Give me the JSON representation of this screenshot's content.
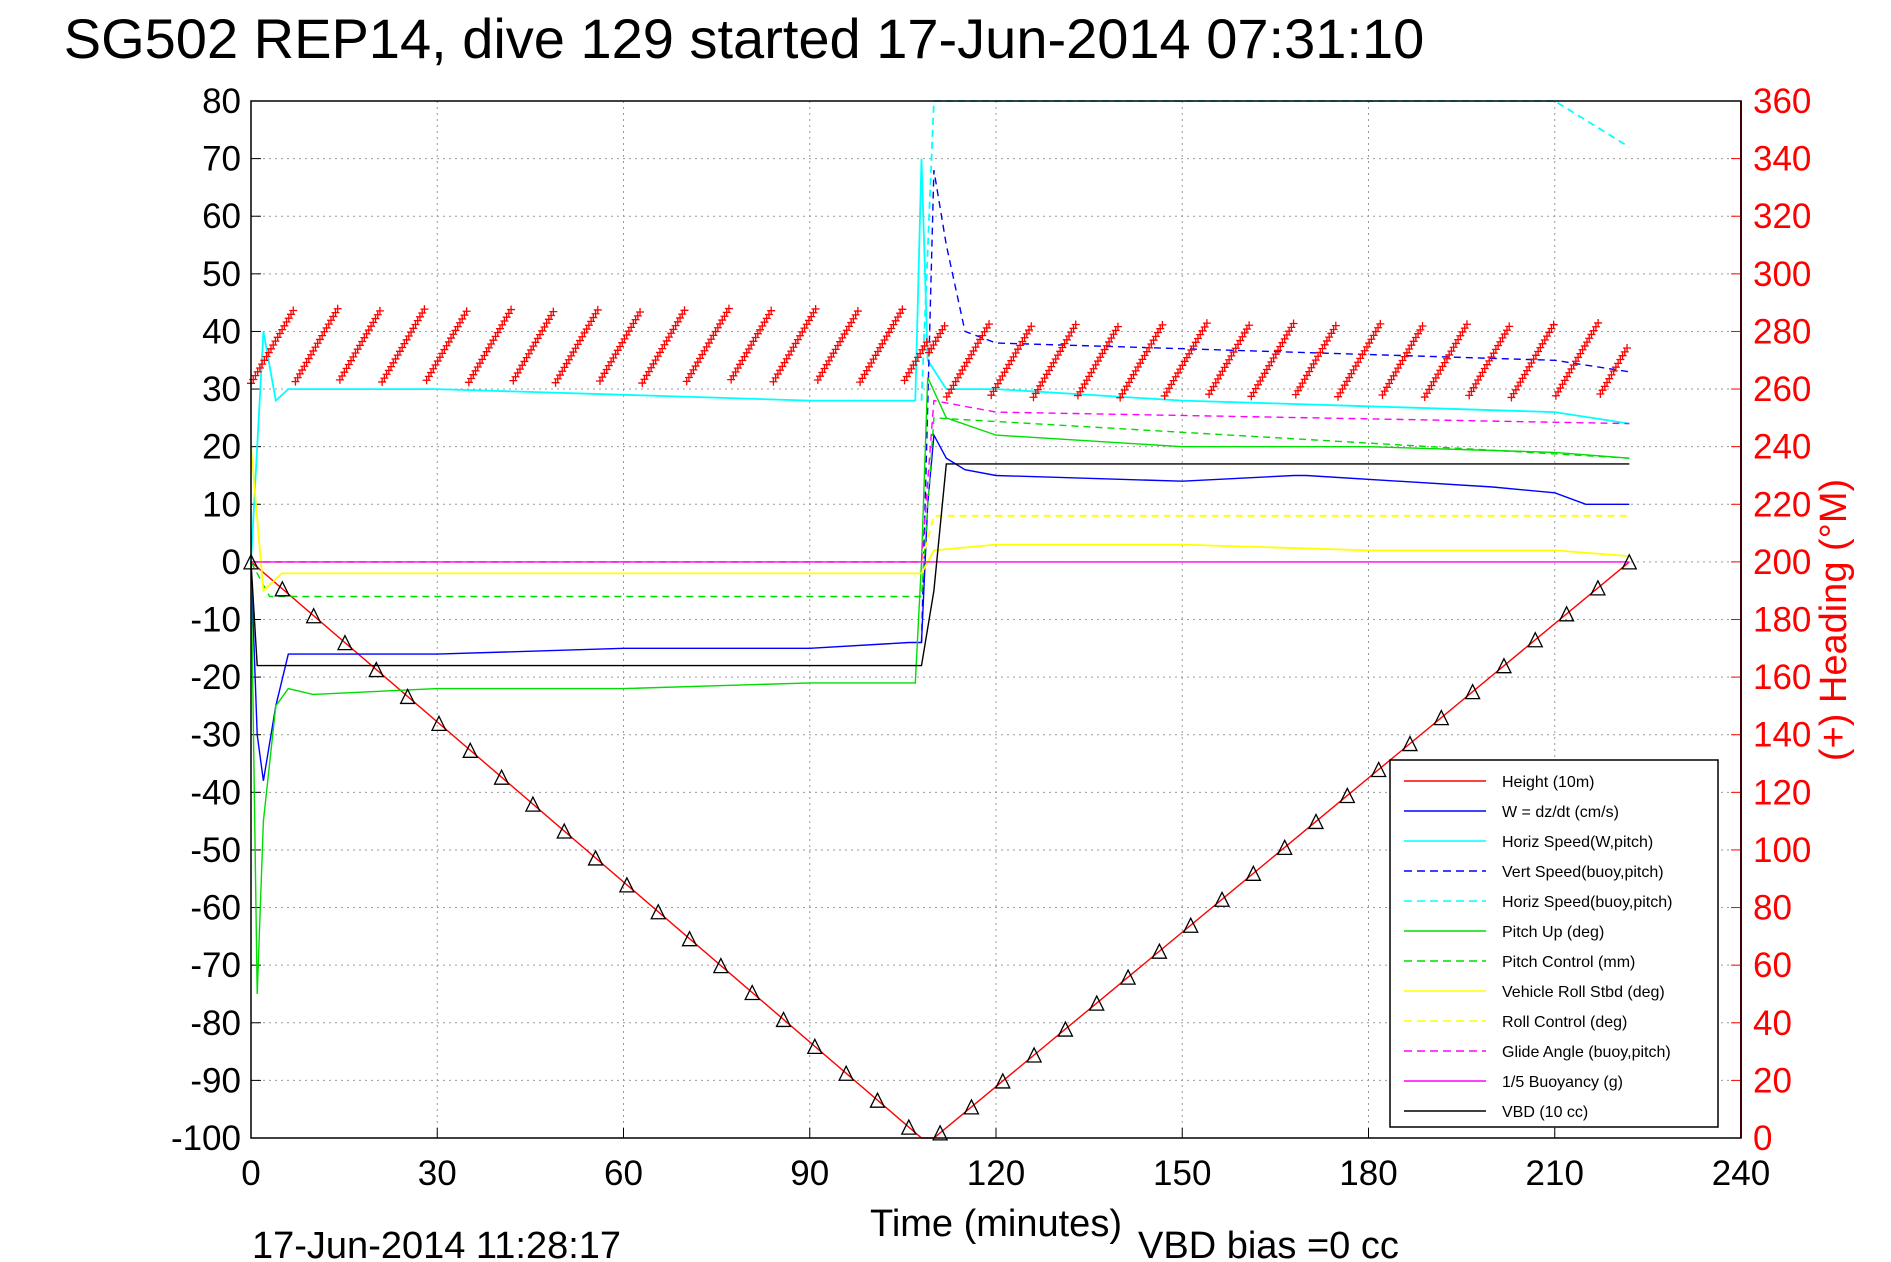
{
  "chart_data": {
    "type": "line",
    "title": "SG502 REP14, dive 129 started 17-Jun-2014 07:31:10",
    "xlabel": "Time (minutes)",
    "ylabel_right": "(+) Heading (°M)",
    "footer_left": "17-Jun-2014 11:28:17",
    "footer_right": "VBD bias =0 cc",
    "xlim": [
      0,
      240
    ],
    "ylim": [
      -100,
      80
    ],
    "ylim_right": [
      0,
      360
    ],
    "x_ticks": [
      "0",
      "30",
      "60",
      "90",
      "120",
      "150",
      "180",
      "210",
      "240"
    ],
    "y_ticks": [
      "80",
      "70",
      "60",
      "50",
      "40",
      "30",
      "20",
      "10",
      "0",
      "-10",
      "-20",
      "-30",
      "-40",
      "-50",
      "-60",
      "-70",
      "-80",
      "-90",
      "-100"
    ],
    "y_right_ticks": [
      "360",
      "340",
      "320",
      "300",
      "280",
      "260",
      "240",
      "220",
      "200",
      "180",
      "160",
      "140",
      "120",
      "100",
      "80",
      "60",
      "40",
      "20",
      "0"
    ],
    "grid": true,
    "legend_position": "bottom-right",
    "series": [
      {
        "name": "Height (10m)",
        "color": "#ff0000",
        "style": "solid",
        "x": [
          0,
          108,
          110,
          222
        ],
        "y": [
          0,
          -100,
          -100,
          0
        ]
      },
      {
        "name": "W = dz/dt (cm/s)",
        "color": "#0000ff",
        "style": "solid",
        "x": [
          0,
          1,
          2,
          4,
          6,
          10,
          30,
          60,
          90,
          106,
          108,
          109,
          110,
          112,
          115,
          120,
          150,
          168,
          170,
          200,
          210,
          215,
          222
        ],
        "y": [
          0,
          -30,
          -38,
          -25,
          -16,
          -16,
          -16,
          -15,
          -15,
          -14,
          -14,
          10,
          22,
          18,
          16,
          15,
          14,
          15,
          15,
          13,
          12,
          10,
          10
        ]
      },
      {
        "name": "Horiz Speed(W,pitch)",
        "color": "#00ffff",
        "style": "solid",
        "x": [
          0,
          2,
          4,
          6,
          30,
          60,
          90,
          107,
          108,
          109,
          112,
          120,
          150,
          180,
          210,
          222
        ],
        "y": [
          0,
          40,
          28,
          30,
          30,
          29,
          28,
          28,
          70,
          35,
          30,
          30,
          28,
          27,
          26,
          24
        ]
      },
      {
        "name": "Vert Speed(buoy,pitch)",
        "color": "#0000ff",
        "style": "dashed",
        "x": [
          108,
          110,
          112,
          115,
          120,
          150,
          180,
          210,
          222
        ],
        "y": [
          -14,
          68,
          55,
          40,
          38,
          37,
          36,
          35,
          33
        ]
      },
      {
        "name": "Horiz Speed(buoy,pitch)",
        "color": "#00ffff",
        "style": "dashed",
        "x": [
          108,
          110,
          115,
          120,
          150,
          180,
          200,
          210,
          222
        ],
        "y": [
          28,
          80,
          80,
          80,
          80,
          80,
          80,
          80,
          72
        ]
      },
      {
        "name": "Pitch Up (deg)",
        "color": "#00dd00",
        "style": "solid",
        "x": [
          0,
          1,
          2,
          4,
          6,
          10,
          30,
          60,
          90,
          107,
          108,
          109,
          112,
          120,
          150,
          180,
          210,
          222
        ],
        "y": [
          0,
          -75,
          -45,
          -25,
          -22,
          -23,
          -22,
          -22,
          -21,
          -21,
          0,
          32,
          25,
          22,
          20,
          20,
          19,
          18
        ]
      },
      {
        "name": "Pitch Control (mm)",
        "color": "#00dd00",
        "style": "dashed",
        "x": [
          0,
          3,
          108,
          110,
          222
        ],
        "y": [
          0,
          -6,
          -6,
          25,
          18
        ]
      },
      {
        "name": "Vehicle Roll Stbd (deg)",
        "color": "#ffff00",
        "style": "solid",
        "x": [
          0,
          2,
          5,
          30,
          60,
          90,
          108,
          110,
          120,
          150,
          180,
          210,
          222
        ],
        "y": [
          20,
          -5,
          -2,
          -2,
          -2,
          -2,
          -2,
          2,
          3,
          3,
          2,
          2,
          1
        ]
      },
      {
        "name": "Roll Control (deg)",
        "color": "#ffff00",
        "style": "dashed",
        "x": [
          0,
          5,
          108,
          110,
          222
        ],
        "y": [
          0,
          0,
          0,
          8,
          8
        ]
      },
      {
        "name": "Glide Angle (buoy,pitch)",
        "color": "#ff00ff",
        "style": "dashed",
        "x": [
          0,
          108,
          110,
          120,
          222
        ],
        "y": [
          0,
          0,
          28,
          26,
          24
        ]
      },
      {
        "name": "1/5 Buoyancy (g)",
        "color": "#ff00ff",
        "style": "solid",
        "x": [
          0,
          222
        ],
        "y": [
          0,
          0
        ]
      },
      {
        "name": "VBD (10 cc)",
        "color": "#000000",
        "style": "solid",
        "x": [
          0,
          1,
          108,
          110,
          112,
          120,
          222
        ],
        "y": [
          0,
          -18,
          -18,
          -5,
          17,
          17,
          17
        ]
      }
    ],
    "heading": {
      "marker": "+",
      "color": "#ff0000",
      "y_axis": "right",
      "mean_descent": 275,
      "mean_ascent": 270,
      "x_start": 0,
      "x_end": 222
    }
  },
  "legend": {
    "items": [
      {
        "label": "Height (10m)",
        "color": "#ff0000",
        "style": "solid"
      },
      {
        "label": "W = dz/dt (cm/s)",
        "color": "#0000ff",
        "style": "solid"
      },
      {
        "label": "Horiz Speed(W,pitch)",
        "color": "#00ffff",
        "style": "solid"
      },
      {
        "label": "Vert Speed(buoy,pitch)",
        "color": "#0000ff",
        "style": "dashed"
      },
      {
        "label": "Horiz Speed(buoy,pitch)",
        "color": "#00ffff",
        "style": "dashed"
      },
      {
        "label": "Pitch Up (deg)",
        "color": "#00dd00",
        "style": "solid"
      },
      {
        "label": "Pitch Control (mm)",
        "color": "#00dd00",
        "style": "dashed"
      },
      {
        "label": "Vehicle Roll Stbd (deg)",
        "color": "#ffff00",
        "style": "solid"
      },
      {
        "label": "Roll Control (deg)",
        "color": "#ffff00",
        "style": "dashed"
      },
      {
        "label": "Glide Angle (buoy,pitch)",
        "color": "#ff00ff",
        "style": "dashed"
      },
      {
        "label": "1/5 Buoyancy (g)",
        "color": "#ff00ff",
        "style": "solid"
      },
      {
        "label": "VBD (10 cc)",
        "color": "#000000",
        "style": "solid"
      }
    ]
  }
}
